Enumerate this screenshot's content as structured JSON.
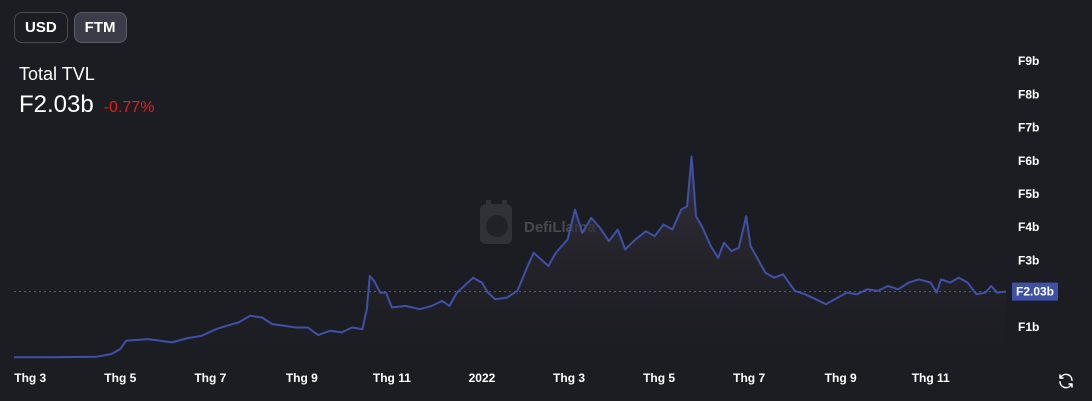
{
  "currency_toggle": {
    "usd_label": "USD",
    "ftm_label": "FTM",
    "active": "FTM"
  },
  "summary": {
    "label": "Total TVL",
    "value": "F2.03b",
    "change": "-0.77%",
    "change_color": "#e11d1d"
  },
  "watermark": {
    "text": "DefiLlama"
  },
  "colors": {
    "line": "#3f51a6",
    "area_top": "#3a3540",
    "area_bottom": "#1c1d22",
    "current_tag": "#3f51a6",
    "background": "#1c1d22"
  },
  "icons": {
    "refresh": "refresh-icon"
  },
  "chart_data": {
    "type": "area",
    "title": "Total TVL",
    "xlabel": "",
    "ylabel": "",
    "y_unit": "F (billions)",
    "ylim": [
      0,
      9
    ],
    "y_ticks": [
      {
        "value": 1,
        "label": "F1b"
      },
      {
        "value": 3,
        "label": "F3b"
      },
      {
        "value": 4,
        "label": "F4b"
      },
      {
        "value": 5,
        "label": "F5b"
      },
      {
        "value": 6,
        "label": "F6b"
      },
      {
        "value": 7,
        "label": "F7b"
      },
      {
        "value": 8,
        "label": "F8b"
      },
      {
        "value": 9,
        "label": "F9b"
      }
    ],
    "current_value": 2.03,
    "current_label": "F2.03b",
    "xlim": [
      "2021-02-18",
      "2022-12-22"
    ],
    "x_ticks": [
      {
        "date": "2021-03-01",
        "label": "Thg 3"
      },
      {
        "date": "2021-05-01",
        "label": "Thg 5"
      },
      {
        "date": "2021-07-01",
        "label": "Thg 7"
      },
      {
        "date": "2021-09-01",
        "label": "Thg 9"
      },
      {
        "date": "2021-11-01",
        "label": "Thg 11"
      },
      {
        "date": "2022-01-01",
        "label": "2022"
      },
      {
        "date": "2022-03-01",
        "label": "Thg 3"
      },
      {
        "date": "2022-05-01",
        "label": "Thg 5"
      },
      {
        "date": "2022-07-01",
        "label": "Thg 7"
      },
      {
        "date": "2022-09-01",
        "label": "Thg 9"
      },
      {
        "date": "2022-11-01",
        "label": "Thg 11"
      }
    ],
    "series": [
      {
        "points": [
          [
            "2021-02-18",
            0.05
          ],
          [
            "2021-03-15",
            0.05
          ],
          [
            "2021-04-15",
            0.07
          ],
          [
            "2021-04-25",
            0.15
          ],
          [
            "2021-05-01",
            0.3
          ],
          [
            "2021-05-05",
            0.55
          ],
          [
            "2021-05-20",
            0.6
          ],
          [
            "2021-06-05",
            0.5
          ],
          [
            "2021-06-15",
            0.62
          ],
          [
            "2021-06-25",
            0.7
          ],
          [
            "2021-07-05",
            0.9
          ],
          [
            "2021-07-12",
            1.0
          ],
          [
            "2021-07-20",
            1.1
          ],
          [
            "2021-07-28",
            1.3
          ],
          [
            "2021-08-05",
            1.25
          ],
          [
            "2021-08-12",
            1.05
          ],
          [
            "2021-08-20",
            1.0
          ],
          [
            "2021-08-28",
            0.95
          ],
          [
            "2021-09-05",
            0.95
          ],
          [
            "2021-09-12",
            0.72
          ],
          [
            "2021-09-20",
            0.85
          ],
          [
            "2021-09-28",
            0.8
          ],
          [
            "2021-10-05",
            0.95
          ],
          [
            "2021-10-12",
            0.9
          ],
          [
            "2021-10-15",
            1.5
          ],
          [
            "2021-10-17",
            2.5
          ],
          [
            "2021-10-20",
            2.35
          ],
          [
            "2021-10-24",
            2.0
          ],
          [
            "2021-10-28",
            2.0
          ],
          [
            "2021-11-01",
            1.55
          ],
          [
            "2021-11-10",
            1.6
          ],
          [
            "2021-11-20",
            1.5
          ],
          [
            "2021-11-28",
            1.6
          ],
          [
            "2021-12-05",
            1.75
          ],
          [
            "2021-12-10",
            1.6
          ],
          [
            "2021-12-15",
            2.0
          ],
          [
            "2021-12-20",
            2.2
          ],
          [
            "2021-12-26",
            2.45
          ],
          [
            "2022-01-01",
            2.3
          ],
          [
            "2022-01-05",
            2.0
          ],
          [
            "2022-01-10",
            1.8
          ],
          [
            "2022-01-18",
            1.85
          ],
          [
            "2022-01-25",
            2.05
          ],
          [
            "2022-02-01",
            2.8
          ],
          [
            "2022-02-05",
            3.2
          ],
          [
            "2022-02-10",
            3.0
          ],
          [
            "2022-02-15",
            2.8
          ],
          [
            "2022-02-20",
            3.2
          ],
          [
            "2022-02-28",
            3.6
          ],
          [
            "2022-03-05",
            4.5
          ],
          [
            "2022-03-10",
            3.8
          ],
          [
            "2022-03-16",
            4.25
          ],
          [
            "2022-03-22",
            3.95
          ],
          [
            "2022-03-28",
            3.55
          ],
          [
            "2022-04-03",
            3.9
          ],
          [
            "2022-04-08",
            3.3
          ],
          [
            "2022-04-15",
            3.6
          ],
          [
            "2022-04-22",
            3.85
          ],
          [
            "2022-04-28",
            3.7
          ],
          [
            "2022-05-04",
            4.05
          ],
          [
            "2022-05-10",
            3.9
          ],
          [
            "2022-05-16",
            4.5
          ],
          [
            "2022-05-20",
            4.6
          ],
          [
            "2022-05-23",
            6.1
          ],
          [
            "2022-05-26",
            4.3
          ],
          [
            "2022-05-30",
            4.0
          ],
          [
            "2022-06-05",
            3.4
          ],
          [
            "2022-06-10",
            3.05
          ],
          [
            "2022-06-14",
            3.5
          ],
          [
            "2022-06-19",
            3.25
          ],
          [
            "2022-06-24",
            3.35
          ],
          [
            "2022-06-29",
            4.3
          ],
          [
            "2022-07-02",
            3.4
          ],
          [
            "2022-07-07",
            3.0
          ],
          [
            "2022-07-12",
            2.6
          ],
          [
            "2022-07-18",
            2.45
          ],
          [
            "2022-07-24",
            2.55
          ],
          [
            "2022-08-01",
            2.05
          ],
          [
            "2022-08-08",
            1.95
          ],
          [
            "2022-08-15",
            1.8
          ],
          [
            "2022-08-22",
            1.65
          ],
          [
            "2022-08-28",
            1.8
          ],
          [
            "2022-09-05",
            2.0
          ],
          [
            "2022-09-12",
            1.95
          ],
          [
            "2022-09-19",
            2.1
          ],
          [
            "2022-09-26",
            2.05
          ],
          [
            "2022-10-03",
            2.2
          ],
          [
            "2022-10-10",
            2.1
          ],
          [
            "2022-10-17",
            2.3
          ],
          [
            "2022-10-24",
            2.4
          ],
          [
            "2022-11-01",
            2.3
          ],
          [
            "2022-11-05",
            2.0
          ],
          [
            "2022-11-08",
            2.4
          ],
          [
            "2022-11-14",
            2.3
          ],
          [
            "2022-11-20",
            2.45
          ],
          [
            "2022-11-26",
            2.3
          ],
          [
            "2022-12-02",
            1.95
          ],
          [
            "2022-12-08",
            2.0
          ],
          [
            "2022-12-12",
            2.2
          ],
          [
            "2022-12-16",
            2.0
          ],
          [
            "2022-12-22",
            2.03
          ]
        ]
      }
    ]
  }
}
